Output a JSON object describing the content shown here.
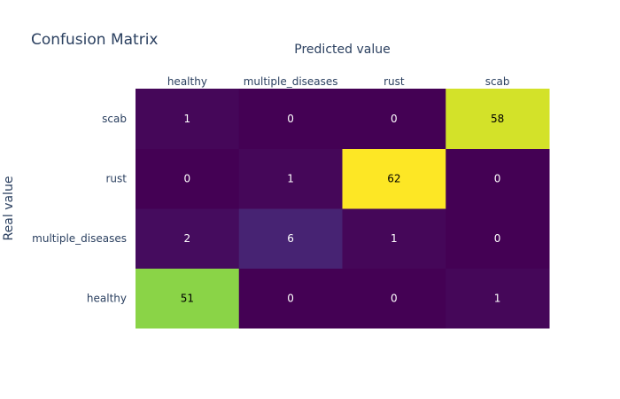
{
  "chart_data": {
    "type": "heatmap",
    "title": "Confusion Matrix",
    "xlabel": "Predicted value",
    "ylabel": "Real value",
    "x_categories": [
      "healthy",
      "multiple_diseases",
      "rust",
      "scab"
    ],
    "y_categories": [
      "healthy",
      "multiple_diseases",
      "rust",
      "scab"
    ],
    "x_axis_side": "top",
    "colorscale": "viridis",
    "zmin": 0,
    "zmax": 62,
    "z": [
      [
        51,
        0,
        0,
        1
      ],
      [
        2,
        6,
        1,
        0
      ],
      [
        0,
        1,
        62,
        0
      ],
      [
        1,
        0,
        0,
        58
      ]
    ],
    "colors": {
      "text_dark": "#2a3f5f",
      "label_light": "#ffffff",
      "label_dark": "#000000"
    }
  }
}
